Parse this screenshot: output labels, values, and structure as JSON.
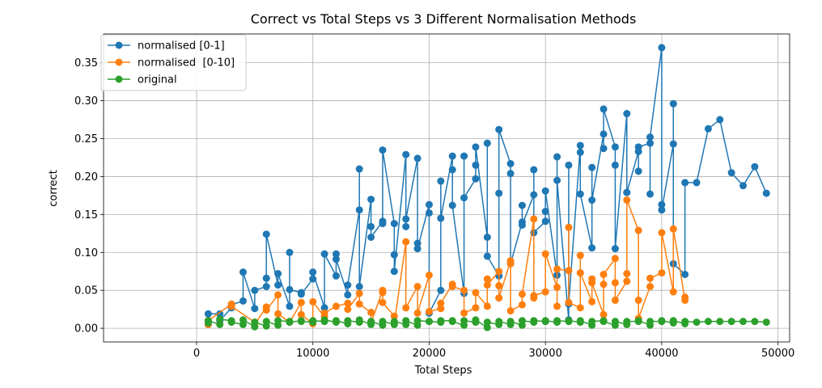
{
  "chart_data": {
    "type": "line",
    "title": "Correct vs Total Steps vs 3 Different Normalisation Methods",
    "xlabel": "Total Steps",
    "ylabel": "correct",
    "xlim": [
      -8000,
      51000
    ],
    "ylim": [
      -0.018,
      0.388
    ],
    "xticks": [
      0,
      10000,
      20000,
      30000,
      40000,
      50000
    ],
    "yticks": [
      0.0,
      0.05,
      0.1,
      0.15,
      0.2,
      0.25,
      0.3,
      0.35
    ],
    "ytick_labels": [
      "0.00",
      "0.05",
      "0.10",
      "0.15",
      "0.20",
      "0.25",
      "0.30",
      "0.35"
    ],
    "grid": true,
    "legend_position": "top-left",
    "series": [
      {
        "name": "normalised [0-1]",
        "color": "#1f77b4",
        "x": [
          1000,
          1000,
          2000,
          2000,
          3000,
          3000,
          4000,
          4000,
          5000,
          5000,
          6000,
          6000,
          6000,
          7000,
          7000,
          8000,
          8000,
          8000,
          9000,
          9000,
          10000,
          10000,
          11000,
          11000,
          12000,
          12000,
          12000,
          13000,
          13000,
          14000,
          14000,
          14000,
          15000,
          15000,
          15000,
          16000,
          16000,
          16000,
          17000,
          17000,
          17000,
          18000,
          18000,
          18000,
          19000,
          19000,
          19000,
          20000,
          20000,
          20000,
          21000,
          21000,
          21000,
          22000,
          22000,
          22000,
          23000,
          23000,
          23000,
          24000,
          24000,
          24000,
          25000,
          25000,
          25000,
          26000,
          26000,
          26000,
          27000,
          27000,
          27000,
          28000,
          28000,
          28000,
          29000,
          29000,
          29000,
          30000,
          30000,
          30000,
          31000,
          31000,
          31000,
          32000,
          32000,
          32000,
          33000,
          33000,
          33000,
          34000,
          34000,
          34000,
          35000,
          35000,
          35000,
          36000,
          36000,
          36000,
          37000,
          37000,
          37000,
          38000,
          38000,
          38000,
          39000,
          39000,
          39000,
          40000,
          40000,
          40000,
          41000,
          41000,
          41000,
          42000,
          42000,
          43000,
          44000,
          45000,
          46000,
          47000,
          48000,
          49000
        ],
        "values": [
          0.005,
          0.019,
          0.019,
          0.01,
          0.027,
          0.031,
          0.036,
          0.074,
          0.026,
          0.05,
          0.055,
          0.066,
          0.124,
          0.057,
          0.072,
          0.029,
          0.1,
          0.051,
          0.047,
          0.045,
          0.065,
          0.074,
          0.027,
          0.098,
          0.069,
          0.098,
          0.091,
          0.044,
          0.057,
          0.156,
          0.21,
          0.055,
          0.17,
          0.134,
          0.12,
          0.141,
          0.138,
          0.235,
          0.138,
          0.097,
          0.075,
          0.229,
          0.134,
          0.144,
          0.224,
          0.112,
          0.105,
          0.163,
          0.152,
          0.02,
          0.05,
          0.194,
          0.145,
          0.227,
          0.209,
          0.162,
          0.046,
          0.227,
          0.172,
          0.197,
          0.215,
          0.239,
          0.12,
          0.244,
          0.095,
          0.069,
          0.178,
          0.262,
          0.217,
          0.204,
          0.085,
          0.14,
          0.162,
          0.136,
          0.176,
          0.209,
          0.126,
          0.141,
          0.154,
          0.181,
          0.07,
          0.226,
          0.195,
          0.011,
          0.215,
          0.032,
          0.241,
          0.232,
          0.177,
          0.106,
          0.212,
          0.169,
          0.256,
          0.237,
          0.289,
          0.239,
          0.215,
          0.105,
          0.283,
          0.179,
          0.179,
          0.233,
          0.207,
          0.239,
          0.244,
          0.177,
          0.252,
          0.37,
          0.163,
          0.156,
          0.243,
          0.296,
          0.085,
          0.071,
          0.192,
          0.192,
          0.263,
          0.275,
          0.205,
          0.188,
          0.213,
          0.178
        ]
      },
      {
        "name": "normalised  [0-10]",
        "color": "#ff7f0e",
        "x": [
          1000,
          1000,
          3000,
          3000,
          5000,
          5000,
          6000,
          6000,
          7000,
          7000,
          8000,
          9000,
          9000,
          10000,
          10000,
          11000,
          11000,
          12000,
          13000,
          13000,
          14000,
          14000,
          15000,
          15000,
          16000,
          16000,
          16000,
          17000,
          17000,
          18000,
          18000,
          19000,
          19000,
          20000,
          20000,
          21000,
          21000,
          22000,
          22000,
          23000,
          23000,
          24000,
          24000,
          25000,
          25000,
          25000,
          26000,
          26000,
          26000,
          27000,
          27000,
          27000,
          28000,
          28000,
          29000,
          29000,
          29000,
          30000,
          30000,
          31000,
          31000,
          31000,
          32000,
          32000,
          32000,
          33000,
          33000,
          33000,
          34000,
          34000,
          34000,
          35000,
          35000,
          35000,
          36000,
          36000,
          36000,
          37000,
          37000,
          37000,
          38000,
          38000,
          38000,
          39000,
          39000,
          40000,
          40000,
          41000,
          41000,
          42000,
          42000
        ],
        "values": [
          0.005,
          0.01,
          0.032,
          0.029,
          0.008,
          0.005,
          0.028,
          0.024,
          0.044,
          0.019,
          0.008,
          0.034,
          0.018,
          0.006,
          0.035,
          0.015,
          0.02,
          0.029,
          0.033,
          0.025,
          0.046,
          0.032,
          0.021,
          0.007,
          0.05,
          0.047,
          0.034,
          0.016,
          0.006,
          0.114,
          0.027,
          0.055,
          0.02,
          0.07,
          0.022,
          0.026,
          0.033,
          0.058,
          0.055,
          0.05,
          0.02,
          0.027,
          0.047,
          0.029,
          0.065,
          0.057,
          0.075,
          0.056,
          0.04,
          0.089,
          0.085,
          0.023,
          0.031,
          0.045,
          0.144,
          0.04,
          0.043,
          0.048,
          0.098,
          0.054,
          0.029,
          0.078,
          0.076,
          0.133,
          0.034,
          0.027,
          0.096,
          0.073,
          0.035,
          0.065,
          0.06,
          0.018,
          0.058,
          0.071,
          0.092,
          0.06,
          0.037,
          0.062,
          0.072,
          0.169,
          0.129,
          0.037,
          0.013,
          0.055,
          0.066,
          0.073,
          0.126,
          0.048,
          0.131,
          0.037,
          0.041
        ]
      },
      {
        "name": "original",
        "color": "#2ca02c",
        "x": [
          1000,
          1000,
          2000,
          2000,
          3000,
          3000,
          4000,
          4000,
          5000,
          5000,
          6000,
          6000,
          7000,
          7000,
          8000,
          8000,
          9000,
          9000,
          10000,
          10000,
          11000,
          11000,
          12000,
          12000,
          13000,
          13000,
          14000,
          14000,
          15000,
          15000,
          16000,
          16000,
          17000,
          17000,
          18000,
          18000,
          19000,
          19000,
          20000,
          20000,
          21000,
          21000,
          22000,
          22000,
          23000,
          23000,
          24000,
          24000,
          25000,
          25000,
          26000,
          26000,
          27000,
          27000,
          28000,
          28000,
          29000,
          29000,
          30000,
          30000,
          31000,
          31000,
          32000,
          32000,
          33000,
          33000,
          34000,
          34000,
          35000,
          35000,
          36000,
          36000,
          37000,
          37000,
          38000,
          38000,
          39000,
          39000,
          40000,
          40000,
          41000,
          41000,
          42000,
          42000,
          43000,
          44000,
          45000,
          46000,
          47000,
          48000,
          49000
        ],
        "values": [
          0.007,
          0.01,
          0.005,
          0.012,
          0.01,
          0.008,
          0.005,
          0.011,
          0.002,
          0.008,
          0.003,
          0.009,
          0.004,
          0.01,
          0.009,
          0.008,
          0.01,
          0.009,
          0.008,
          0.01,
          0.009,
          0.011,
          0.008,
          0.01,
          0.006,
          0.01,
          0.008,
          0.011,
          0.005,
          0.009,
          0.004,
          0.009,
          0.005,
          0.009,
          0.005,
          0.01,
          0.004,
          0.01,
          0.009,
          0.009,
          0.008,
          0.01,
          0.01,
          0.009,
          0.004,
          0.01,
          0.008,
          0.011,
          0.001,
          0.008,
          0.005,
          0.009,
          0.005,
          0.009,
          0.004,
          0.01,
          0.008,
          0.01,
          0.009,
          0.01,
          0.008,
          0.01,
          0.009,
          0.01,
          0.008,
          0.01,
          0.004,
          0.009,
          0.01,
          0.009,
          0.004,
          0.009,
          0.005,
          0.009,
          0.009,
          0.01,
          0.004,
          0.009,
          0.009,
          0.01,
          0.007,
          0.01,
          0.006,
          0.009,
          0.008,
          0.009,
          0.009,
          0.009,
          0.009,
          0.009,
          0.008
        ]
      }
    ]
  }
}
